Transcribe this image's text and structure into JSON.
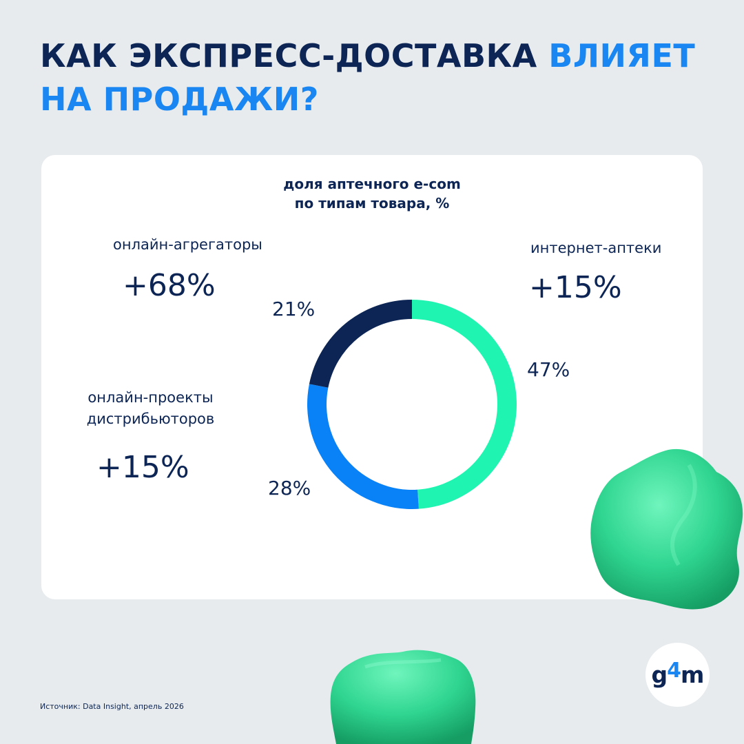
{
  "title": {
    "part1": "КАК ЭКСПРЕСС-ДОСТАВКА",
    "part2": "ВЛИЯЕТ",
    "part3": "НА ПРОДАЖИ?"
  },
  "chart_data": {
    "type": "pie",
    "title_line1": "доля аптечного e-com",
    "title_line2": "по типам товара, %",
    "categories": [
      "интернет-аптеки",
      "онлайн-проекты дистрибьюторов",
      "онлайн-агрегаторы"
    ],
    "values": [
      47,
      28,
      21
    ],
    "value_labels": [
      "47%",
      "28%",
      "21%"
    ],
    "colors": [
      "#1ff5b0",
      "#0a82f7",
      "#0c2554"
    ]
  },
  "labels": {
    "aggregators": {
      "name": "онлайн-агрегаторы",
      "change": "+68%"
    },
    "pharmacies": {
      "name": "интернет-аптеки",
      "change": "+15%"
    },
    "distributors": {
      "name_line1": "онлайн-проекты",
      "name_line2": "дистрибьюторов",
      "change": "+15%"
    }
  },
  "source": "Источник: Data Insight,  апрель 2026",
  "logo": {
    "main": "g",
    "accent": "4",
    "tail": "m"
  }
}
